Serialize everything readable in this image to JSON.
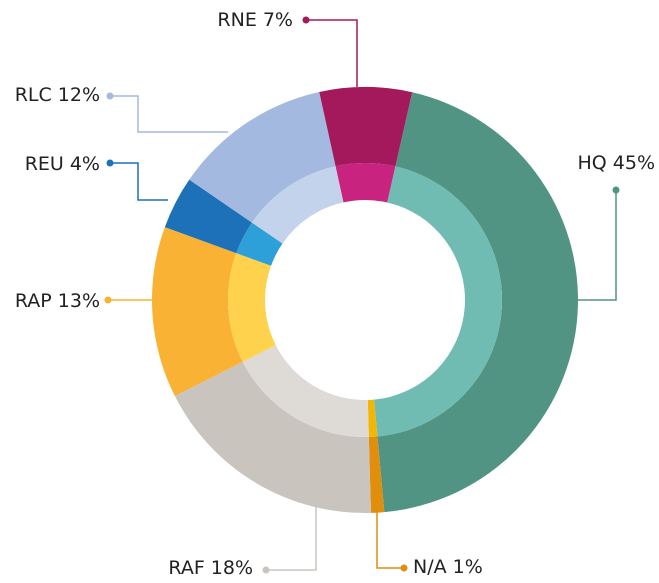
{
  "chart_data": {
    "type": "donut",
    "categories": [
      "HQ",
      "N/A",
      "RAF",
      "RAP",
      "REU",
      "RLC",
      "RNE"
    ],
    "values": [
      45,
      1,
      18,
      13,
      4,
      12,
      7
    ],
    "value_labels": [
      "45%",
      "1%",
      "18%",
      "13%",
      "4%",
      "12%",
      "7%"
    ],
    "colors": [
      "#519484",
      "#e08e0b",
      "#c9c5be",
      "#f9b233",
      "#1d71b8",
      "#a3b9e0",
      "#a3195b"
    ],
    "inner_colors": [
      "#70bcb2",
      "#f2b705",
      "#dedbd7",
      "#fed24c",
      "#2d9fd9",
      "#c4d3ec",
      "#c7237f"
    ]
  }
}
